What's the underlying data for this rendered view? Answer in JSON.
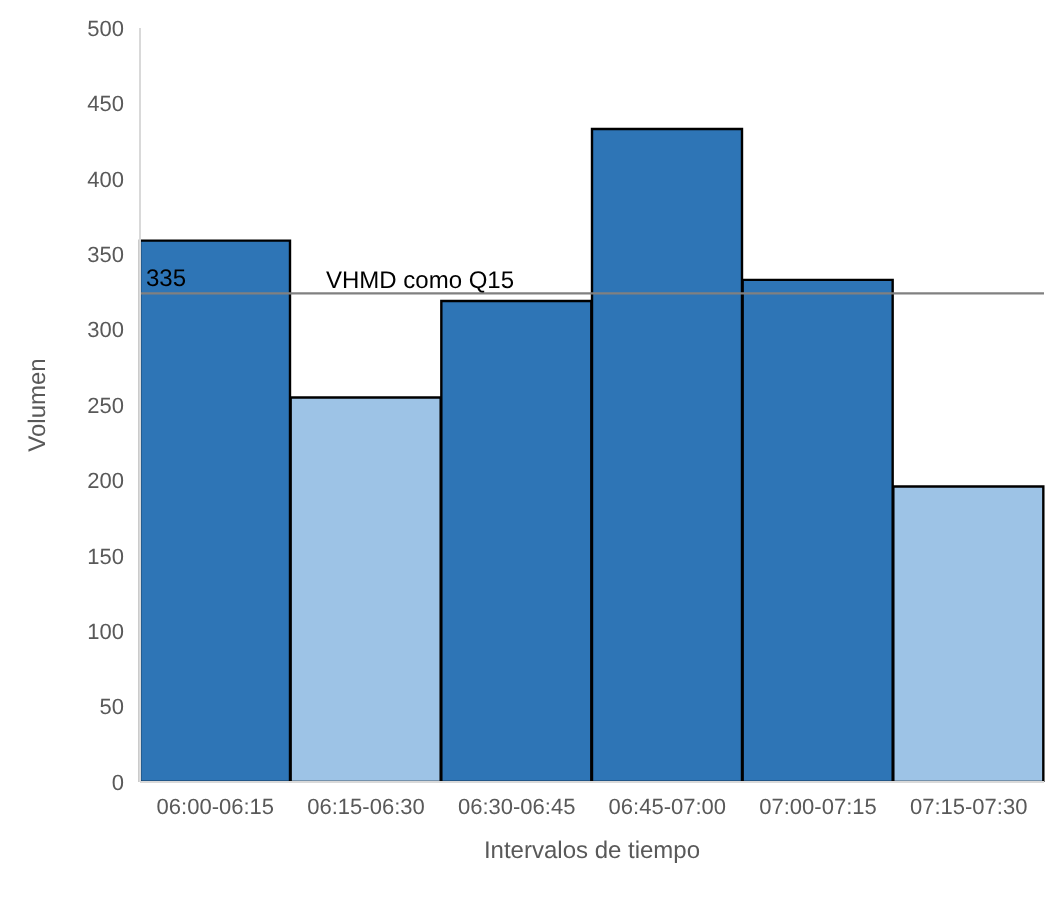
{
  "chart_data": {
    "type": "bar",
    "categories": [
      "06:00-06:15",
      "06:15-06:30",
      "06:30-06:45",
      "06:45-07:00",
      "07:00-07:15",
      "07:15-07:30"
    ],
    "values": [
      359,
      255,
      319,
      433,
      333,
      196
    ],
    "colors": [
      "#2e75b6",
      "#9dc3e6",
      "#2e75b6",
      "#2e75b6",
      "#2e75b6",
      "#9dc3e6"
    ],
    "xlabel": "Intervalos de tiempo",
    "ylabel": "Volumen",
    "ylim": [
      0,
      500
    ],
    "yticks": [
      0,
      50,
      100,
      150,
      200,
      250,
      300,
      350,
      400,
      450,
      500
    ],
    "ref_lines": [
      {
        "axis": "y",
        "value": 324,
        "label": "VHMD como Q15",
        "color": "#808080"
      }
    ],
    "annotations": [
      "335"
    ],
    "grid": false,
    "legend": false
  }
}
